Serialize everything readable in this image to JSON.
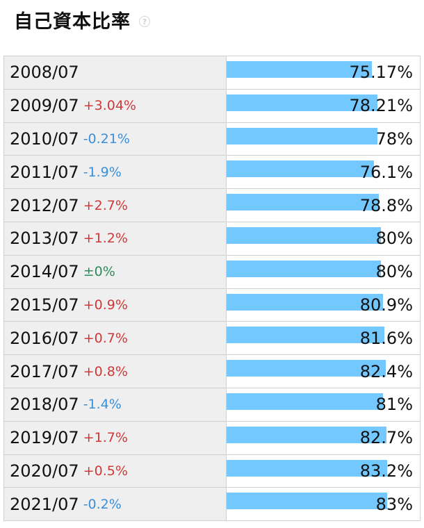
{
  "header": {
    "title": "自己資本比率",
    "help_icon": "help-circle-icon"
  },
  "colors": {
    "bar": "#73c8ff",
    "up": "#d03838",
    "down": "#3a8fd8",
    "flat": "#2e8b57"
  },
  "chart_data": {
    "type": "bar",
    "title": "自己資本比率",
    "unit": "%",
    "xlim": [
      0,
      100
    ],
    "categories": [
      "2008/07",
      "2009/07",
      "2010/07",
      "2011/07",
      "2012/07",
      "2013/07",
      "2014/07",
      "2015/07",
      "2016/07",
      "2017/07",
      "2018/07",
      "2019/07",
      "2020/07",
      "2021/07"
    ],
    "values": [
      75.17,
      78.21,
      78,
      76.1,
      78.8,
      80,
      80,
      80.9,
      81.6,
      82.4,
      81,
      82.7,
      83.2,
      83
    ],
    "value_labels": [
      "75.17%",
      "78.21%",
      "78%",
      "76.1%",
      "78.8%",
      "80%",
      "80%",
      "80.9%",
      "81.6%",
      "82.4%",
      "81%",
      "82.7%",
      "83.2%",
      "83%"
    ],
    "changes": [
      "",
      "+3.04%",
      "-0.21%",
      "-1.9%",
      "+2.7%",
      "+1.2%",
      "±0%",
      "+0.9%",
      "+0.7%",
      "+0.8%",
      "-1.4%",
      "+1.7%",
      "+0.5%",
      "-0.2%"
    ]
  }
}
